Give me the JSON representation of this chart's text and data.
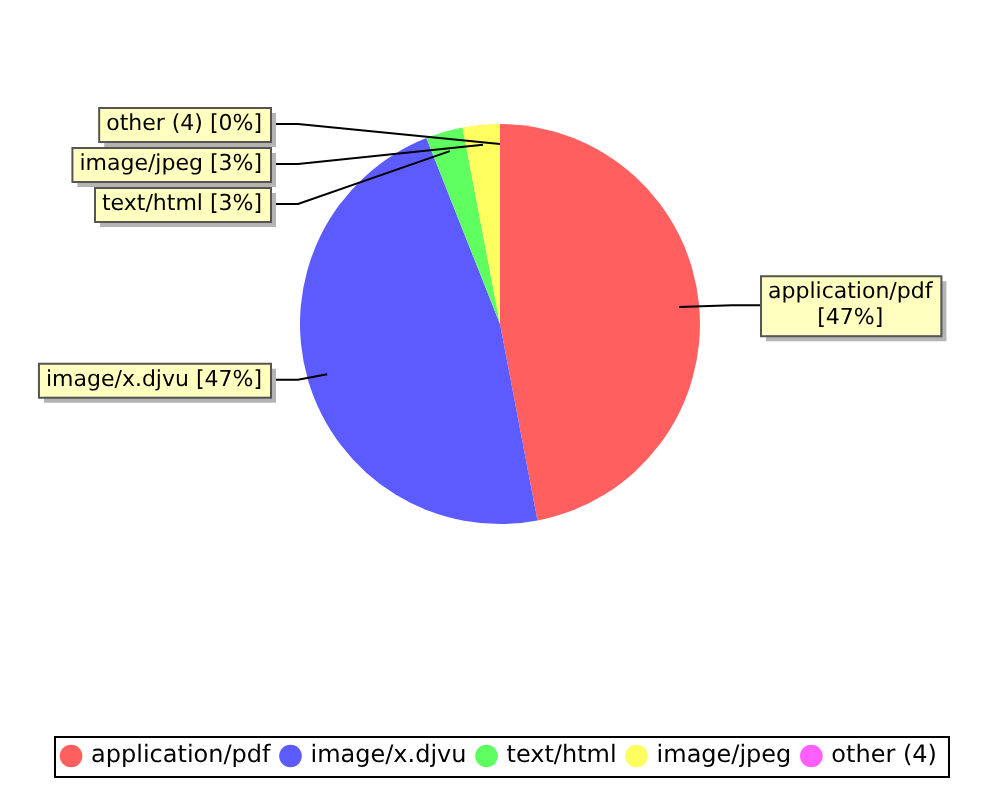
{
  "chart_data": {
    "type": "pie",
    "categories": [
      "application/pdf",
      "image/x.djvu",
      "text/html",
      "image/jpeg",
      "other (4)"
    ],
    "values": [
      47,
      47,
      3,
      3,
      0
    ],
    "colors": [
      "#ff5f5f",
      "#5b5bff",
      "#5fff5f",
      "#ffff5f",
      "#ff5fff"
    ],
    "value_labels": [
      "application/pdf [47%]",
      "image/x.djvu [47%]",
      "text/html [3%]",
      "image/jpeg [3%]",
      "other (4) [0%]"
    ],
    "legend": "bottom"
  }
}
